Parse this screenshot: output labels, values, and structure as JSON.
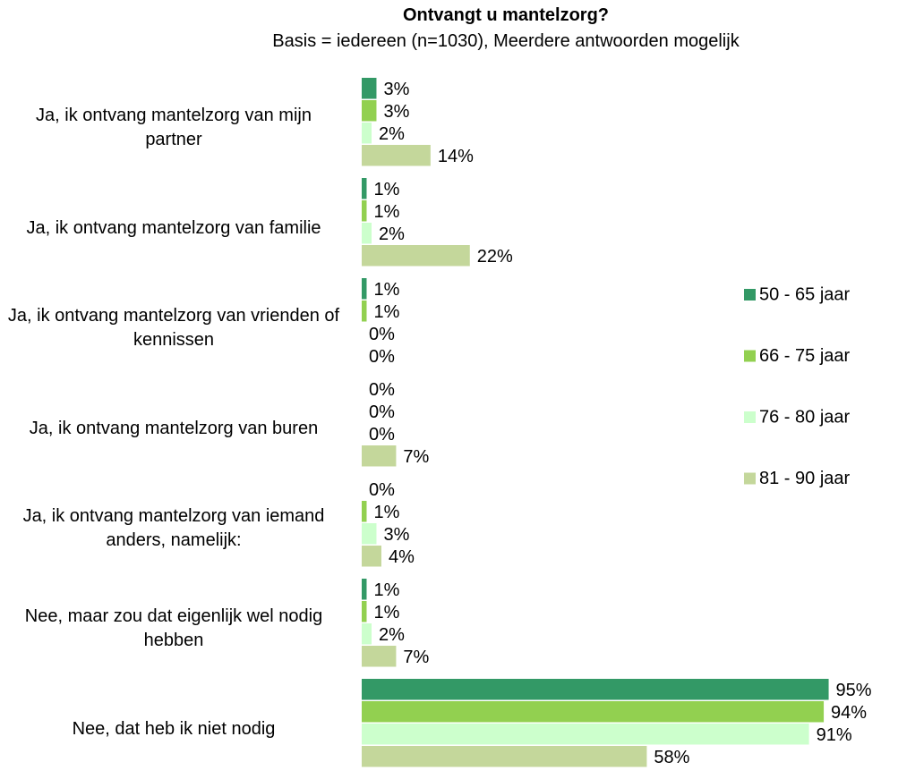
{
  "chart_data": {
    "type": "bar",
    "orientation": "horizontal",
    "title": "Ontvangt u mantelzorg?",
    "subtitle": "Basis = iedereen (n=1030), Meerdere antwoorden mogelijk",
    "categories": [
      "Ja, ik ontvang mantelzorg van mijn partner",
      "Ja, ik ontvang mantelzorg van familie",
      "Ja, ik ontvang mantelzorg van vrienden of kennissen",
      "Ja, ik ontvang mantelzorg van buren",
      "Ja, ik ontvang mantelzorg van iemand anders, namelijk:",
      "Nee, maar zou dat eigenlijk wel nodig hebben",
      "Nee, dat heb ik niet nodig"
    ],
    "xlim": [
      0,
      100
    ],
    "series": [
      {
        "name": "50 - 65 jaar",
        "color": "#339966",
        "values": [
          3,
          1,
          1,
          0,
          0,
          1,
          95
        ],
        "value_labels": [
          "3%",
          "1%",
          "1%",
          "0%",
          "0%",
          "1%",
          "95%"
        ]
      },
      {
        "name": "66 - 75 jaar",
        "color": "#92d050",
        "values": [
          3,
          1,
          1,
          0,
          1,
          1,
          94
        ],
        "value_labels": [
          "3%",
          "1%",
          "1%",
          "0%",
          "1%",
          "1%",
          "94%"
        ]
      },
      {
        "name": "76 - 80 jaar",
        "color": "#ccffcc",
        "values": [
          2,
          2,
          0,
          0,
          3,
          2,
          91
        ],
        "value_labels": [
          "2%",
          "2%",
          "0%",
          "0%",
          "3%",
          "2%",
          "91%"
        ]
      },
      {
        "name": "81 - 90 jaar",
        "color": "#c4d79b",
        "values": [
          14,
          22,
          0,
          7,
          4,
          7,
          58
        ],
        "value_labels": [
          "14%",
          "22%",
          "0%",
          "7%",
          "4%",
          "7%",
          "58%"
        ]
      }
    ],
    "legend": "right"
  }
}
